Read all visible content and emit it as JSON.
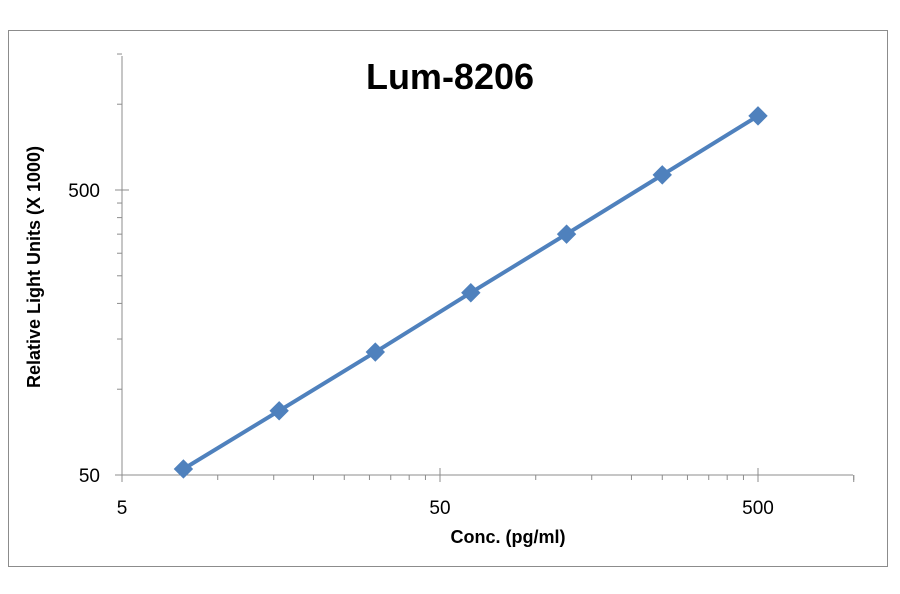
{
  "chart_data": {
    "type": "line",
    "title": "Lum-8206",
    "xlabel": "Conc. (pg/ml)",
    "ylabel": "Relative Light Units (X 1000)",
    "x_scale": "log",
    "y_scale": "log",
    "xlim": [
      5,
      1000
    ],
    "ylim": [
      50,
      1500
    ],
    "x_ticks": [
      "5",
      "50",
      "500"
    ],
    "y_ticks": [
      "50",
      "500"
    ],
    "grid": false,
    "legend": "none",
    "marker": "diamond",
    "color": "#4f81bd",
    "series": [
      {
        "x": [
          7.8,
          15.6,
          31.3,
          62.5,
          125,
          250,
          500
        ],
        "y": [
          52.5,
          84,
          135,
          218,
          350,
          565,
          910
        ]
      }
    ]
  }
}
